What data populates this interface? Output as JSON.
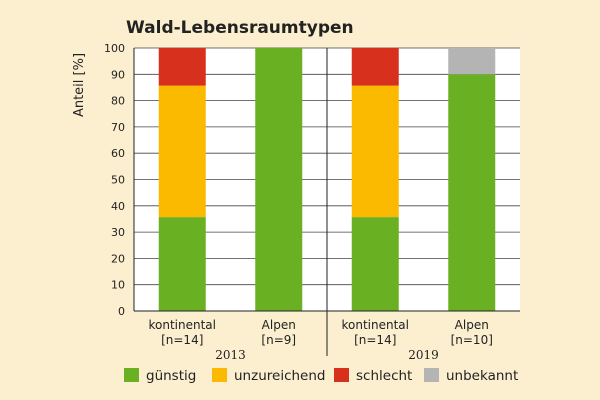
{
  "chart_data": {
    "type": "bar",
    "stacked": true,
    "title": "Wald-Lebensraumtypen",
    "ylabel": "Anteil [%]",
    "xlabel": "",
    "ylim": [
      0,
      100
    ],
    "yticks": [
      "0",
      "10",
      "20",
      "30",
      "40",
      "50",
      "60",
      "70",
      "80",
      "90",
      "100"
    ],
    "grid": true,
    "legend_position": "bottom",
    "categories": [
      {
        "line1": "kontinental",
        "line2": "[n=14]"
      },
      {
        "line1": "Alpen",
        "line2": "[n=9]"
      },
      {
        "line1": "kontinental",
        "line2": "[n=14]"
      },
      {
        "line1": "Alpen",
        "line2": "[n=10]"
      }
    ],
    "groups": [
      {
        "label": "2013",
        "categories": [
          0,
          1
        ]
      },
      {
        "label": "2019",
        "categories": [
          2,
          3
        ]
      }
    ],
    "series": [
      {
        "name": "günstig",
        "color": "#6ab023",
        "values": [
          35.7,
          100,
          35.7,
          90
        ]
      },
      {
        "name": "unzureichend",
        "color": "#fbb900",
        "values": [
          50,
          0,
          50,
          0
        ]
      },
      {
        "name": "schlecht",
        "color": "#d7301c",
        "values": [
          14.3,
          0,
          14.3,
          0
        ]
      },
      {
        "name": "unbekannt",
        "color": "#b4b4b4",
        "values": [
          0,
          0,
          0,
          10
        ]
      }
    ]
  }
}
